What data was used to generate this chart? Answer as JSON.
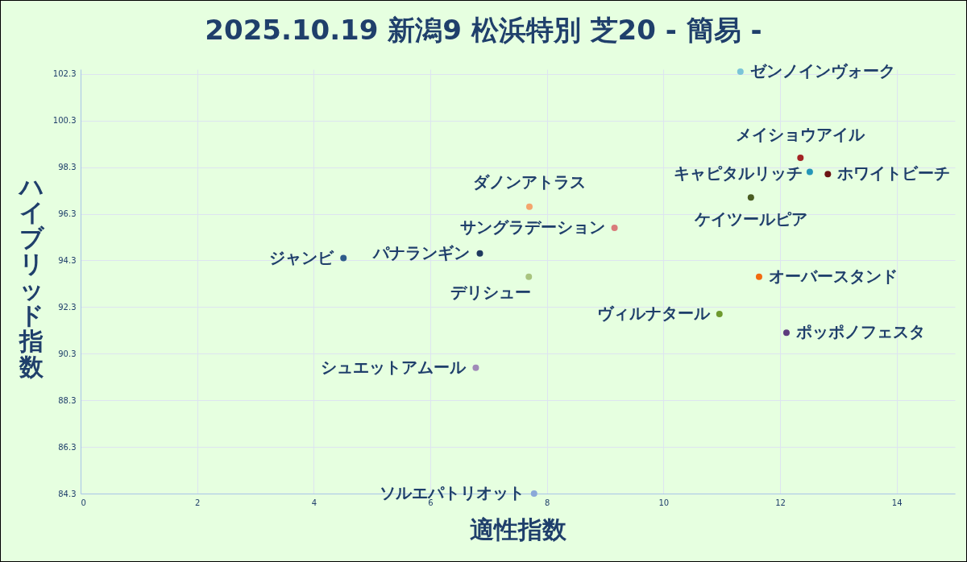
{
  "chart_data": {
    "type": "scatter",
    "title": "2025.10.19 新潟9 松浜特別 芝20 - 簡易 -",
    "xlabel": "適性指数",
    "ylabel": "ハイブリッド指数",
    "xlim": [
      0,
      15
    ],
    "ylim": [
      84.3,
      102.5
    ],
    "xticks": [
      0,
      2,
      4,
      6,
      8,
      10,
      12,
      14
    ],
    "yticks": [
      84.3,
      86.3,
      88.3,
      90.3,
      92.3,
      94.3,
      96.3,
      98.3,
      100.3,
      102.3
    ],
    "grid": true,
    "legend": false,
    "marker": "circle",
    "series": [
      {
        "name": "ゼンノインヴォーク",
        "color": "#7bc4d8",
        "x": [
          11.32
        ],
        "values": [
          102.4
        ]
      },
      {
        "name": "メイショウアイル",
        "color": "#a32424",
        "x": [
          12.35
        ],
        "values": [
          98.7
        ]
      },
      {
        "name": "キャピタルリッチ",
        "color": "#2596b8",
        "x": [
          12.51
        ],
        "values": [
          98.1
        ]
      },
      {
        "name": "ホワイトビーチ",
        "color": "#6b1414",
        "x": [
          12.82
        ],
        "values": [
          98.0
        ]
      },
      {
        "name": "ケイツールピア",
        "color": "#4a5d23",
        "x": [
          11.5
        ],
        "values": [
          97.0
        ]
      },
      {
        "name": "ダノンアトラス",
        "color": "#f4a56c",
        "x": [
          7.7
        ],
        "values": [
          96.6
        ]
      },
      {
        "name": "サングラデーション",
        "color": "#d97b7b",
        "x": [
          9.16
        ],
        "values": [
          95.7
        ]
      },
      {
        "name": "ジャンビ",
        "color": "#2e5c8a",
        "x": [
          4.51
        ],
        "values": [
          94.4
        ]
      },
      {
        "name": "パナランギン",
        "color": "#1f3a5f",
        "x": [
          6.85
        ],
        "values": [
          94.6
        ]
      },
      {
        "name": "デリシュー",
        "color": "#a9c47f",
        "x": [
          7.69
        ],
        "values": [
          93.6
        ]
      },
      {
        "name": "オーバースタンド",
        "color": "#f26b0f",
        "x": [
          11.64
        ],
        "values": [
          93.6
        ]
      },
      {
        "name": "ヴィルナタール",
        "color": "#6e9a2e",
        "x": [
          10.96
        ],
        "values": [
          92.0
        ]
      },
      {
        "name": "ポッポノフェスタ",
        "color": "#5e3c7e",
        "x": [
          12.11
        ],
        "values": [
          91.2
        ]
      },
      {
        "name": "シュエットアムール",
        "color": "#a08ab8",
        "x": [
          6.78
        ],
        "values": [
          89.7
        ]
      },
      {
        "name": "ソルエパトリオット",
        "color": "#8aa8d8",
        "x": [
          7.78
        ],
        "values": [
          84.3
        ]
      }
    ]
  }
}
